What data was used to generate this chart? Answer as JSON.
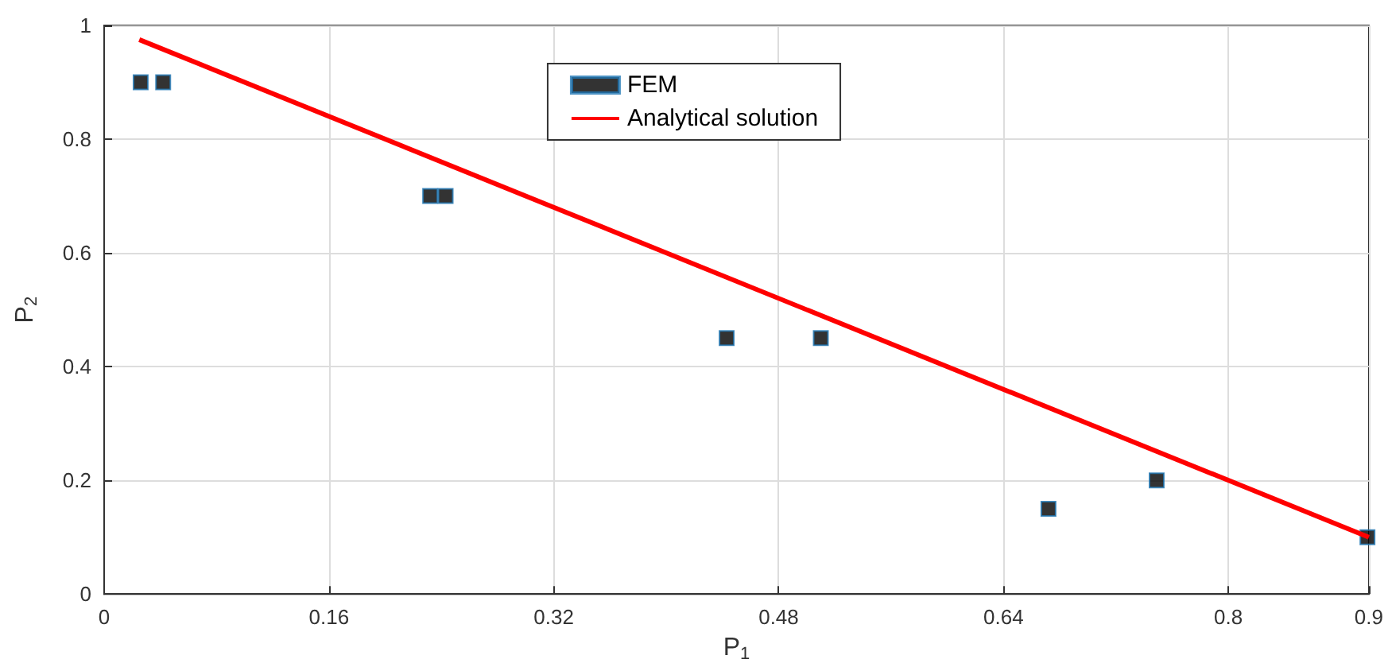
{
  "chart_data": {
    "type": "scatter",
    "xlabel": "P$_{1}$",
    "ylabel": "P$_{2}$",
    "xlim": [
      0,
      0.9
    ],
    "xticks": [
      0,
      0.16,
      0.32,
      0.48,
      0.64,
      0.8,
      0.9
    ],
    "ylim": [
      0,
      1
    ],
    "yticks": [
      0,
      0.2,
      0.4,
      0.6,
      0.8,
      1
    ],
    "grid": true,
    "legend": "top",
    "series": [
      {
        "name": "FEM",
        "marker": "square",
        "color": "#000000",
        "x": [
          0.026,
          0.042,
          0.232,
          0.243,
          0.443,
          0.51,
          0.672,
          0.749,
          0.899
        ],
        "values": [
          0.9,
          0.9,
          0.7,
          0.7,
          0.45,
          0.45,
          0.15,
          0.2,
          0.1
        ]
      },
      {
        "name": "Analytical solution",
        "type": "line",
        "color": "#ff0000",
        "line_style": "solid",
        "marker": "none",
        "x": [
          0.025,
          0.9
        ],
        "values": [
          0.975,
          0.1
        ]
      }
    ]
  }
}
